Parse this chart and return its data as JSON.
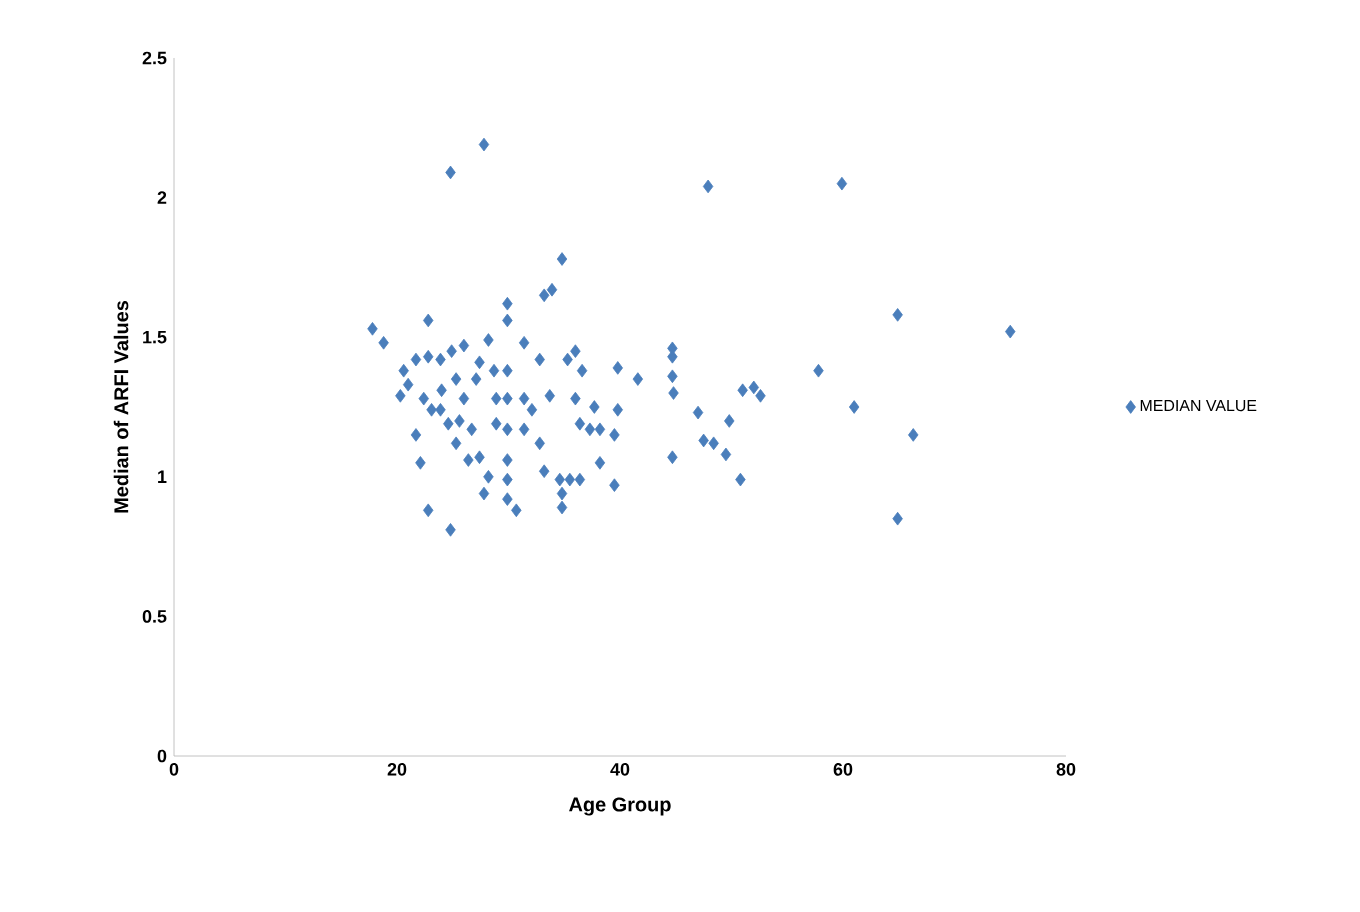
{
  "chart_data": {
    "type": "scatter",
    "xlabel": "Age Group",
    "ylabel": "Median of ARFI Values",
    "xlim": [
      0,
      80
    ],
    "ylim": [
      0,
      2.5
    ],
    "xticks": [
      0,
      20,
      40,
      60,
      80
    ],
    "yticks": [
      0,
      0.5,
      1,
      1.5,
      2,
      2.5
    ],
    "grid": false,
    "legend": "right",
    "marker": "diamond",
    "series": [
      {
        "name": "MEDIAN VALUE",
        "color": "#4a7ebb",
        "x": [
          24.8,
          27.8,
          47.9,
          59.9,
          64.9,
          75.0,
          57.8,
          61.0,
          66.3,
          64.9,
          52.6,
          52,
          51,
          50.8,
          49.5,
          49.8,
          48.4,
          47.5,
          47,
          44.8,
          44.7,
          44.7,
          44.7,
          44.7,
          41.6,
          39.8,
          39.8,
          39.5,
          39.5,
          38.2,
          37.7,
          37.3,
          36.4,
          36.4,
          35.5,
          34.6,
          34.8,
          34.8,
          34.8,
          33.9,
          33.2,
          35.3,
          36,
          32.8,
          31.4,
          29.9,
          29.9,
          29.9,
          29.9,
          29.9,
          29.9,
          29.9,
          29.9,
          30.7,
          31.4,
          31.4,
          32.1,
          32.8,
          33.2,
          33.7,
          28.2,
          28.7,
          27.8,
          27.4,
          26.7,
          26,
          27.1,
          24.8,
          22.8,
          22.1,
          21.7,
          22.8,
          17.8,
          18.8,
          20.6,
          21.0,
          20.3,
          21.7,
          22.8,
          23.9,
          24.9,
          26,
          24,
          23.1,
          24.6,
          25.3,
          26.4,
          22.4,
          23.9,
          25.3,
          25.6,
          27.4,
          28.9,
          28.9,
          28.2,
          36,
          36.6,
          38.2
        ],
        "values": [
          2.09,
          2.19,
          2.04,
          2.05,
          1.58,
          1.52,
          1.38,
          1.25,
          1.15,
          0.85,
          1.29,
          1.32,
          1.31,
          0.99,
          1.08,
          1.2,
          1.12,
          1.13,
          1.23,
          1.3,
          1.43,
          1.46,
          1.36,
          1.07,
          1.35,
          1.39,
          1.24,
          1.15,
          0.97,
          1.05,
          1.25,
          1.17,
          1.19,
          0.99,
          0.99,
          0.99,
          0.94,
          0.89,
          1.78,
          1.67,
          1.65,
          1.42,
          1.45,
          1.42,
          1.48,
          1.62,
          1.56,
          1.38,
          1.28,
          1.17,
          1.06,
          0.99,
          0.92,
          0.88,
          1.28,
          1.17,
          1.24,
          1.12,
          1.02,
          1.29,
          1.49,
          1.38,
          0.94,
          1.07,
          1.17,
          1.28,
          1.35,
          0.81,
          0.88,
          1.05,
          1.15,
          1.56,
          1.53,
          1.48,
          1.38,
          1.33,
          1.29,
          1.42,
          1.43,
          1.42,
          1.45,
          1.47,
          1.31,
          1.24,
          1.19,
          1.12,
          1.06,
          1.28,
          1.24,
          1.35,
          1.2,
          1.41,
          1.28,
          1.19,
          1.0,
          1.28,
          1.38,
          1.17
        ]
      }
    ]
  }
}
